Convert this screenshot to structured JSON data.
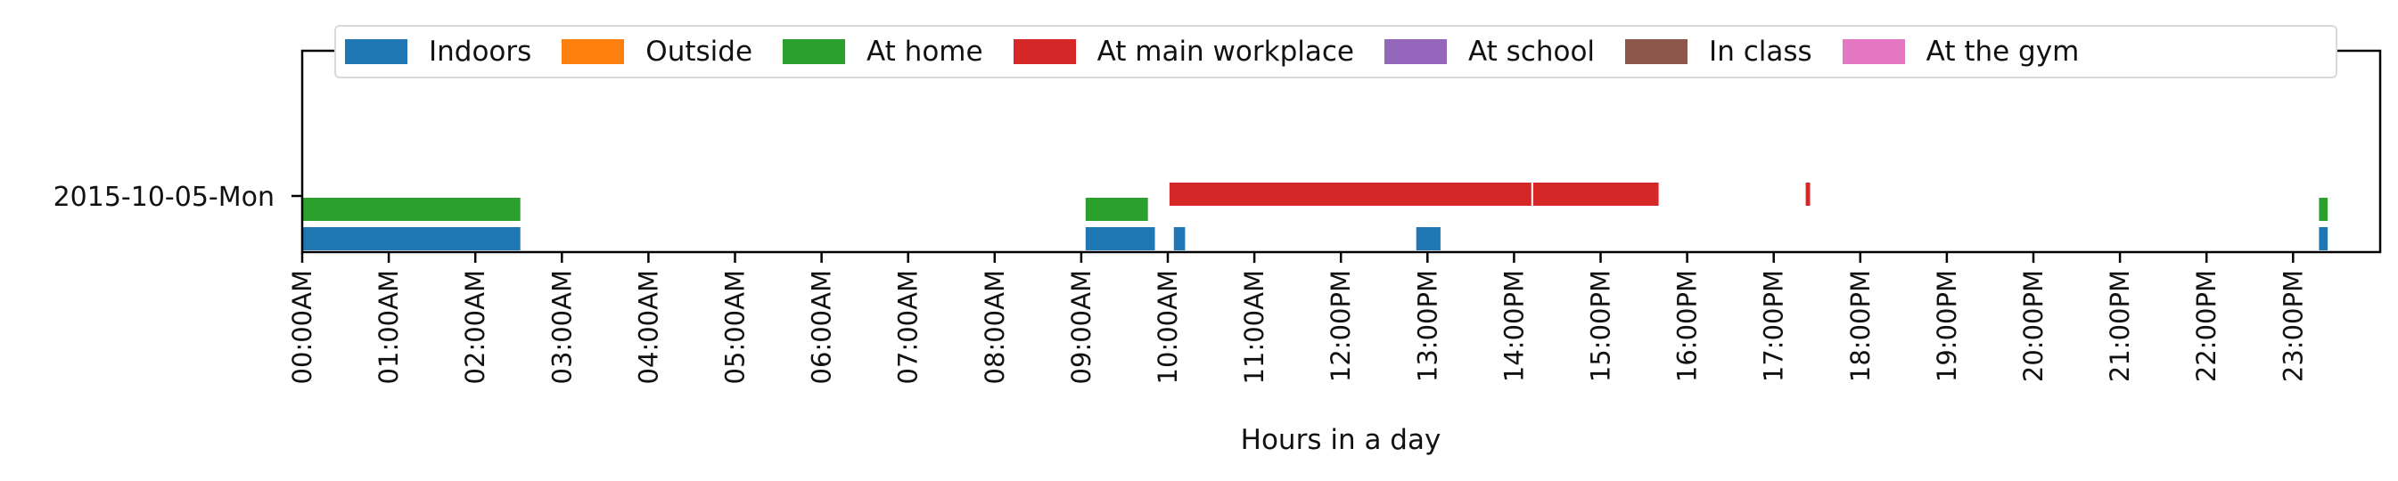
{
  "chart_data": {
    "type": "timeline",
    "title": "",
    "xlabel": "Hours in a day",
    "ylabel": "",
    "row_label": "2015-10-05-Mon",
    "xlim": [
      0,
      24
    ],
    "x_ticks": [
      "00:00AM",
      "01:00AM",
      "02:00AM",
      "03:00AM",
      "04:00AM",
      "05:00AM",
      "06:00AM",
      "07:00AM",
      "08:00AM",
      "09:00AM",
      "10:00AM",
      "11:00AM",
      "12:00PM",
      "13:00PM",
      "14:00PM",
      "15:00PM",
      "16:00PM",
      "17:00PM",
      "18:00PM",
      "19:00PM",
      "20:00PM",
      "21:00PM",
      "22:00PM",
      "23:00PM"
    ],
    "legend_position": "top",
    "series": [
      {
        "name": "Indoors",
        "color": "#1f77b4",
        "lane": 0,
        "intervals": [
          [
            0.0,
            2.52
          ],
          [
            9.05,
            9.85
          ],
          [
            10.07,
            10.2
          ],
          [
            12.87,
            13.15
          ],
          [
            23.3,
            23.4
          ]
        ]
      },
      {
        "name": "Outside",
        "color": "#ff7f0e",
        "lane": 1,
        "intervals": []
      },
      {
        "name": "At home",
        "color": "#2ca02c",
        "lane": 2,
        "intervals": [
          [
            0.0,
            2.52
          ],
          [
            9.05,
            9.77
          ],
          [
            23.3,
            23.4
          ]
        ]
      },
      {
        "name": "At main workplace",
        "color": "#d62728",
        "lane": 3,
        "intervals": [
          [
            10.02,
            14.2
          ],
          [
            14.22,
            15.67
          ],
          [
            17.37,
            17.42
          ]
        ]
      },
      {
        "name": "At school",
        "color": "#9467bd",
        "lane": 4,
        "intervals": []
      },
      {
        "name": "In class",
        "color": "#8c564b",
        "lane": 5,
        "intervals": []
      },
      {
        "name": "At the gym",
        "color": "#e377c2",
        "lane": 6,
        "intervals": []
      }
    ]
  }
}
